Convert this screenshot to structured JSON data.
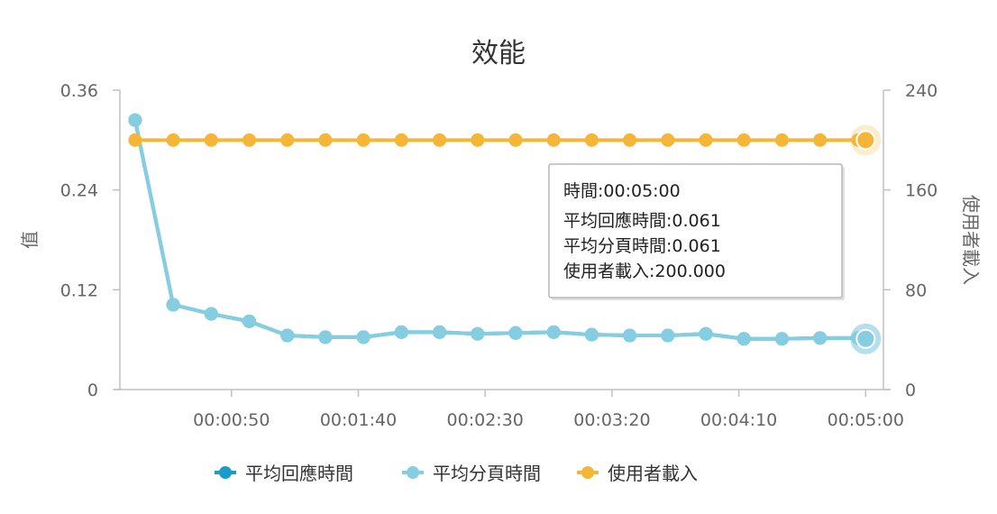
{
  "chart_data": {
    "type": "line",
    "title": "效能",
    "xlabel": "",
    "ylabel_left": "值",
    "ylabel_right": "使用者載入",
    "x_tick_labels": [
      "00:00:50",
      "00:01:40",
      "00:02:30",
      "00:03:20",
      "00:04:10",
      "00:05:00"
    ],
    "x_tick_seconds": [
      50,
      100,
      150,
      200,
      250,
      300
    ],
    "xlim_seconds": [
      6,
      307
    ],
    "ylim_left": [
      0,
      0.36
    ],
    "ylim_right": [
      0,
      240
    ],
    "y_left_ticks": [
      "0",
      "0.12",
      "0.24",
      "0.36"
    ],
    "y_right_ticks": [
      "0",
      "80",
      "160",
      "240"
    ],
    "x_seconds": [
      12,
      27,
      42,
      57,
      72,
      87,
      102,
      117,
      132,
      147,
      162,
      177,
      192,
      207,
      222,
      237,
      252,
      267,
      282,
      297,
      300
    ],
    "series": [
      {
        "name": "平均回應時間",
        "axis": "left",
        "color": "#1a9bc9",
        "values": [
          0.324,
          0.102,
          0.091,
          0.082,
          0.065,
          0.063,
          0.063,
          0.069,
          0.069,
          0.067,
          0.068,
          0.069,
          0.066,
          0.065,
          0.065,
          0.067,
          0.061,
          0.061,
          0.062,
          0.062,
          0.061
        ]
      },
      {
        "name": "平均分頁時間",
        "axis": "left",
        "color": "#85cde0",
        "values": [
          0.324,
          0.102,
          0.091,
          0.082,
          0.065,
          0.063,
          0.063,
          0.069,
          0.069,
          0.067,
          0.068,
          0.069,
          0.066,
          0.065,
          0.065,
          0.067,
          0.061,
          0.061,
          0.062,
          0.062,
          0.061
        ]
      },
      {
        "name": "使用者載入",
        "axis": "right",
        "color": "#f5b638",
        "values": [
          200,
          200,
          200,
          200,
          200,
          200,
          200,
          200,
          200,
          200,
          200,
          200,
          200,
          200,
          200,
          200,
          200,
          200,
          200,
          200,
          200
        ]
      }
    ],
    "grid": false,
    "legend_position": "bottom",
    "tooltip": {
      "lines": [
        "時間:00:05:00",
        "平均回應時間:0.061",
        "平均分頁時間:0.061",
        "使用者載入:200.000"
      ]
    }
  }
}
